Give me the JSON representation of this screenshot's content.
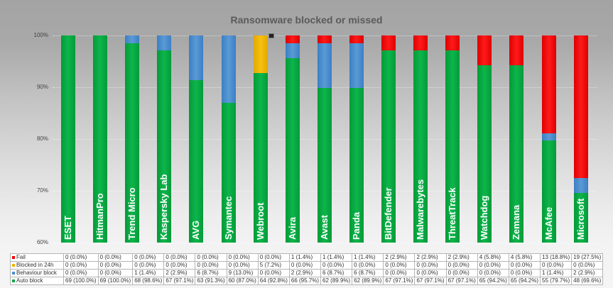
{
  "chart_data": {
    "type": "bar",
    "stacked": true,
    "percent_stacked": true,
    "title": "Ransomware blocked or missed",
    "xlabel": "",
    "ylabel": "",
    "ylim": [
      60,
      100
    ],
    "yticks": [
      "60%",
      "70%",
      "80%",
      "90%",
      "100%"
    ],
    "grid": true,
    "legend_position": "data-table",
    "categories": [
      "ESET",
      "HitmanPro",
      "Trend Micro",
      "Kaspersky Lab",
      "AVG",
      "Symantec",
      "Webroot",
      "Avira",
      "Avast",
      "Panda",
      "BitDefender",
      "Malwarebytes",
      "ThreatTrack",
      "Watchdog",
      "Zemana",
      "McAfee",
      "Microsoft"
    ],
    "series": [
      {
        "name": "Auto block",
        "color": "#0aa843",
        "values": [
          69,
          69,
          68,
          67,
          63,
          60,
          64,
          66,
          62,
          62,
          67,
          67,
          67,
          65,
          65,
          55,
          48
        ],
        "labels": [
          "69 (100.0%)",
          "69 (100.0%)",
          "68 (98.6%)",
          "67 (97.1%)",
          "63 (91.3%)",
          "60 (87.0%)",
          "64 (92.8%)",
          "66 (95.7%)",
          "62 (89.9%)",
          "62 (89.9%)",
          "67 (97.1%)",
          "67 (97.1%)",
          "67 (97.1%)",
          "65 (94.2%)",
          "65 (94.2%)",
          "55 (79.7%)",
          "48 (69.6%)"
        ]
      },
      {
        "name": "Behaviour block",
        "color": "#4a8fd0",
        "values": [
          0,
          0,
          1,
          2,
          6,
          9,
          0,
          2,
          6,
          6,
          0,
          0,
          0,
          0,
          0,
          1,
          2
        ],
        "labels": [
          "0 (0.0%)",
          "0 (0.0%)",
          "1 (1.4%)",
          "2 (2.9%)",
          "6 (8.7%)",
          "9 (13.0%)",
          "0 (0.0%)",
          "2 (2.9%)",
          "6 (8.7%)",
          "6 (8.7%)",
          "0 (0.0%)",
          "0 (0.0%)",
          "0 (0.0%)",
          "0 (0.0%)",
          "0 (0.0%)",
          "1 (1.4%)",
          "2 (2.9%)"
        ]
      },
      {
        "name": "Blocked in 24h",
        "color": "#f0b400",
        "values": [
          0,
          0,
          0,
          0,
          0,
          0,
          5,
          0,
          0,
          0,
          0,
          0,
          0,
          0,
          0,
          0,
          0
        ],
        "labels": [
          "0 (0.0%)",
          "0 (0.0%)",
          "0 (0.0%)",
          "0 (0.0%)",
          "0 (0.0%)",
          "0 (0.0%)",
          "5 (7.2%)",
          "0 (0.0%)",
          "0 (0.0%)",
          "0 (0.0%)",
          "0 (0.0%)",
          "0 (0.0%)",
          "0 (0.0%)",
          "0 (0.0%)",
          "0 (0.0%)",
          "0 (0.0%)",
          "0 (0.0%)"
        ]
      },
      {
        "name": "Fail",
        "color": "#ee0000",
        "values": [
          0,
          0,
          0,
          0,
          0,
          0,
          0,
          1,
          1,
          1,
          2,
          2,
          2,
          4,
          4,
          13,
          19
        ],
        "labels": [
          "0 (0.0%)",
          "0 (0.0%)",
          "0 (0.0%)",
          "0 (0.0%)",
          "0 (0.0%)",
          "0 (0.0%)",
          "0 (0.0%)",
          "1 (1.4%)",
          "1 (1.4%)",
          "1 (1.4%)",
          "2 (2.9%)",
          "2 (2.9%)",
          "2 (2.9%)",
          "4 (5.8%)",
          "4 (5.8%)",
          "13 (18.8%)",
          "19 (27.5%)"
        ]
      }
    ],
    "table_row_order": [
      "Fail",
      "Blocked in 24h",
      "Behaviour block",
      "Auto block"
    ],
    "total_samples": 69
  }
}
